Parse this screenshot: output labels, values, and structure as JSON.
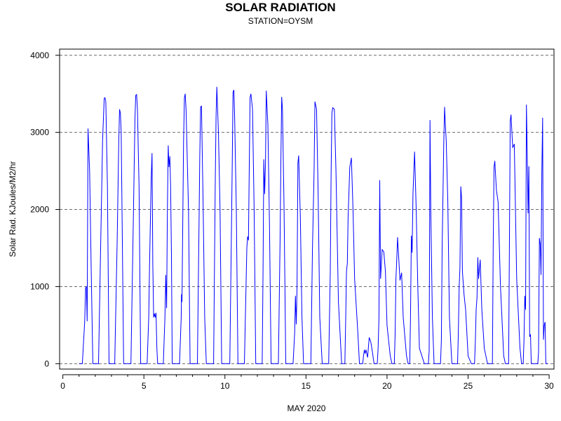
{
  "chart_data": {
    "type": "line",
    "title": "SOLAR RADIATION",
    "subtitle": "STATION=OYSM",
    "xlabel": "MAY 2020",
    "ylabel": "Solar Rad. KJoules/M2/hr",
    "xlim": [
      -0.2,
      30.3
    ],
    "ylim": [
      -70,
      4080
    ],
    "x_ticks": [
      0,
      5,
      10,
      15,
      20,
      25,
      30
    ],
    "y_ticks": [
      0,
      1000,
      2000,
      3000,
      4000
    ],
    "grid": "horizontal dashed",
    "series": [
      {
        "color": "#0000ff",
        "x": [
          1.0,
          1.2,
          1.35,
          1.4,
          1.45,
          1.5,
          1.55,
          1.65,
          1.75,
          1.85,
          2.0,
          2.2,
          2.35,
          2.45,
          2.55,
          2.6,
          2.65,
          2.75,
          2.85,
          3.0,
          3.2,
          3.35,
          3.45,
          3.5,
          3.55,
          3.6,
          3.65,
          3.75,
          3.85,
          4.0,
          4.2,
          4.35,
          4.45,
          4.5,
          4.55,
          4.6,
          4.7,
          4.8,
          4.9,
          5.0,
          5.2,
          5.3,
          5.35,
          5.45,
          5.5,
          5.55,
          5.6,
          5.65,
          5.7,
          5.75,
          5.8,
          5.85,
          5.9,
          6.2,
          6.3,
          6.35,
          6.4,
          6.45,
          6.5,
          6.55,
          6.6,
          6.65,
          6.7,
          6.75,
          6.8,
          6.9,
          7.2,
          7.3,
          7.32,
          7.35,
          7.45,
          7.5,
          7.55,
          7.6,
          7.75,
          7.85,
          8.0,
          8.2,
          8.3,
          8.4,
          8.45,
          8.5,
          8.55,
          8.65,
          8.75,
          8.85,
          9.0,
          9.2,
          9.3,
          9.4,
          9.45,
          9.5,
          9.6,
          9.7,
          9.8,
          9.9,
          10.0,
          10.2,
          10.3,
          10.45,
          10.5,
          10.55,
          10.6,
          10.7,
          10.8,
          10.9,
          11.0,
          11.2,
          11.35,
          11.4,
          11.45,
          11.5,
          11.55,
          11.6,
          11.7,
          11.8,
          11.9,
          12.0,
          12.2,
          12.3,
          12.35,
          12.4,
          12.45,
          12.5,
          12.55,
          12.65,
          12.75,
          12.85,
          13.0,
          13.2,
          13.3,
          13.4,
          13.45,
          13.5,
          13.55,
          13.65,
          13.75,
          13.85,
          14.0,
          14.2,
          14.3,
          14.35,
          14.4,
          14.45,
          14.5,
          14.55,
          14.65,
          14.75,
          14.85,
          15.0,
          15.2,
          15.3,
          15.4,
          15.5,
          15.55,
          15.65,
          15.75,
          15.85,
          16.0,
          16.2,
          16.3,
          16.4,
          16.5,
          16.55,
          16.6,
          16.65,
          16.75,
          16.85,
          17.0,
          17.2,
          17.3,
          17.35,
          17.4,
          17.45,
          17.5,
          17.55,
          17.6,
          17.7,
          17.8,
          17.9,
          18.0,
          18.2,
          18.3,
          18.4,
          18.45,
          18.5,
          18.55,
          18.6,
          18.65,
          18.7,
          18.8,
          18.9,
          19.0,
          19.1,
          19.2,
          19.3,
          19.35,
          19.4,
          19.45,
          19.5,
          19.55,
          19.6,
          19.7,
          19.8,
          19.9,
          20.0,
          20.2,
          20.3,
          20.4,
          20.45,
          20.5,
          20.55,
          20.6,
          20.65,
          20.7,
          20.8,
          20.9,
          21.0,
          21.2,
          21.3,
          21.35,
          21.4,
          21.45,
          21.5,
          21.55,
          21.6,
          21.7,
          21.8,
          21.9,
          22.0,
          22.3,
          22.5,
          22.55,
          22.6,
          22.65,
          22.7,
          22.8,
          22.9,
          23.0,
          23.2,
          23.3,
          23.35,
          23.4,
          23.45,
          23.5,
          23.55,
          23.6,
          23.65,
          23.75,
          23.85,
          24.0,
          24.2,
          24.3,
          24.35,
          24.4,
          24.45,
          24.5,
          24.55,
          24.6,
          24.65,
          24.75,
          24.85,
          25.0,
          25.2,
          25.3,
          25.35,
          25.4,
          25.45,
          25.5,
          25.55,
          25.6,
          25.65,
          25.75,
          25.85,
          26.0,
          26.2,
          26.35,
          26.45,
          26.5,
          26.55,
          26.6,
          26.65,
          26.75,
          26.85,
          27.0,
          27.2,
          27.3,
          27.4,
          27.45,
          27.5,
          27.55,
          27.6,
          27.65,
          27.75,
          27.85,
          28.0,
          28.2,
          28.3,
          28.32,
          28.35,
          28.4,
          28.45,
          28.5,
          28.55,
          28.6,
          28.65,
          28.7,
          28.75,
          28.8,
          28.85,
          28.9,
          29.0,
          29.2,
          29.3,
          29.35,
          29.4,
          29.45,
          29.5,
          29.55,
          29.6,
          29.65,
          29.7,
          29.75,
          29.8,
          29.9
        ],
        "y": [
          0,
          0,
          550,
          980,
          1000,
          550,
          3050,
          2500,
          1200,
          0,
          0,
          0,
          1700,
          2900,
          3440,
          3450,
          3400,
          2300,
          0,
          0,
          0,
          1600,
          2900,
          3300,
          3250,
          3000,
          2000,
          0,
          0,
          0,
          0,
          1900,
          3200,
          3480,
          3490,
          3300,
          2300,
          0,
          0,
          0,
          0,
          600,
          1300,
          2400,
          2730,
          1300,
          600,
          650,
          600,
          660,
          200,
          0,
          0,
          0,
          600,
          1150,
          720,
          2000,
          2830,
          2550,
          2690,
          2300,
          1400,
          0,
          0,
          0,
          0,
          600,
          900,
          800,
          2900,
          3450,
          3500,
          3300,
          2000,
          0,
          0,
          0,
          0,
          1800,
          2700,
          3330,
          3340,
          2100,
          600,
          0,
          0,
          0,
          0,
          2300,
          3200,
          3590,
          3000,
          2000,
          0,
          0,
          0,
          0,
          0,
          2600,
          3520,
          3550,
          3200,
          2000,
          0,
          0,
          0,
          0,
          1500,
          1650,
          1600,
          2500,
          3450,
          3500,
          3300,
          2000,
          0,
          0,
          0,
          0,
          1200,
          2650,
          2200,
          2600,
          3540,
          3100,
          1800,
          0,
          0,
          0,
          0,
          1600,
          2600,
          3460,
          3300,
          2000,
          0,
          0,
          0,
          0,
          400,
          880,
          510,
          1000,
          2600,
          2700,
          1900,
          600,
          0,
          0,
          0,
          0,
          1500,
          2500,
          3400,
          3300,
          2200,
          600,
          0,
          0,
          0,
          0,
          1200,
          2500,
          3250,
          3320,
          3300,
          2500,
          800,
          0,
          0,
          0,
          0,
          600,
          1200,
          1300,
          1900,
          2550,
          2670,
          2000,
          1100,
          400,
          0,
          0,
          0,
          0,
          100,
          180,
          130,
          180,
          80,
          340,
          280,
          150,
          0,
          0,
          0,
          0,
          200,
          600,
          2380,
          1100,
          1480,
          1450,
          1200,
          500,
          100,
          0,
          0,
          0,
          400,
          1100,
          1350,
          1640,
          1450,
          1080,
          1180,
          600,
          100,
          0,
          0,
          0,
          600,
          1660,
          1440,
          2200,
          2750,
          2000,
          1000,
          200,
          0,
          0,
          0,
          170,
          3160,
          2000,
          600,
          0,
          0,
          0,
          0,
          300,
          1500,
          2200,
          2850,
          3330,
          3100,
          2900,
          2100,
          600,
          0,
          0,
          0,
          0,
          400,
          1000,
          1250,
          2300,
          2150,
          1200,
          900,
          700,
          100,
          0,
          0,
          0,
          0,
          300,
          700,
          850,
          1380,
          1100,
          1350,
          700,
          200,
          0,
          0,
          0,
          0,
          1500,
          2550,
          2630,
          2250,
          2100,
          1000,
          100,
          0,
          0,
          0,
          0,
          1500,
          3150,
          3230,
          2800,
          2850,
          1100,
          200,
          0,
          0,
          0,
          0,
          300,
          880,
          700,
          3360,
          2700,
          1950,
          2560,
          350,
          380,
          0,
          0,
          0,
          0,
          150,
          1630,
          1550,
          1150,
          2500,
          3190,
          310,
          500,
          540,
          0,
          0
        ]
      }
    ]
  }
}
